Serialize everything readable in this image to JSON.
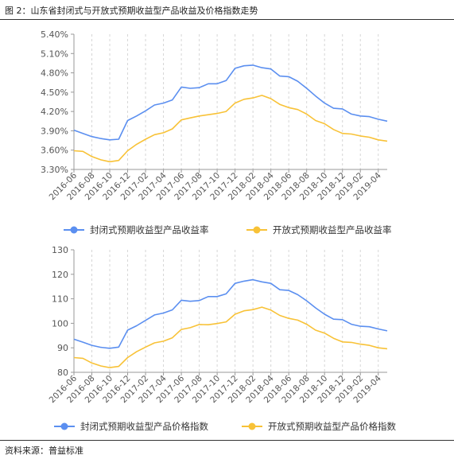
{
  "figure_title": "图 2：山东省封闭式与开放式预期收益型产品收益及价格指数走势",
  "source_note": "资料来源：普益标准",
  "colors": {
    "closed": "#5b8ff0",
    "open": "#f8c237",
    "grid": "#d6d6d6",
    "axis": "#999999",
    "text": "#555555"
  },
  "chart_data": [
    {
      "type": "line",
      "title": "",
      "x": [
        "2016-06",
        "2016-07",
        "2016-08",
        "2016-09",
        "2016-10",
        "2016-11",
        "2016-12",
        "2017-01",
        "2017-02",
        "2017-03",
        "2017-04",
        "2017-05",
        "2017-06",
        "2017-07",
        "2017-08",
        "2017-09",
        "2017-10",
        "2017-11",
        "2017-12",
        "2018-01",
        "2018-02",
        "2018-03",
        "2018-04",
        "2018-05",
        "2018-06",
        "2018-07",
        "2018-08",
        "2018-09",
        "2018-10",
        "2018-11",
        "2018-12",
        "2019-01",
        "2019-02",
        "2019-03",
        "2019-04",
        "2019-05"
      ],
      "x_tick_labels": [
        "2016-06",
        "2016-08",
        "2016-10",
        "2016-12",
        "2017-02",
        "2017-04",
        "2017-06",
        "2017-08",
        "2017-10",
        "2017-12",
        "2018-02",
        "2018-04",
        "2018-06",
        "2018-08",
        "2018-10",
        "2018-12",
        "2019-02",
        "2019-04"
      ],
      "ylim": [
        3.3,
        5.4
      ],
      "yticks": [
        "5.40%",
        "5.10%",
        "4.80%",
        "4.50%",
        "4.20%",
        "3.90%",
        "3.60%",
        "3.30%"
      ],
      "ytick_values": [
        5.4,
        5.1,
        4.8,
        4.5,
        4.2,
        3.9,
        3.6,
        3.3
      ],
      "grid": "vertical-dashed",
      "legend_position": "bottom",
      "series": [
        {
          "name": "封闭式预期收益型产品收益率",
          "color_key": "closed",
          "values": [
            3.91,
            3.86,
            3.81,
            3.78,
            3.76,
            3.77,
            4.06,
            4.13,
            4.21,
            4.3,
            4.33,
            4.38,
            4.58,
            4.56,
            4.57,
            4.63,
            4.63,
            4.68,
            4.87,
            4.91,
            4.92,
            4.88,
            4.86,
            4.75,
            4.74,
            4.67,
            4.56,
            4.44,
            4.33,
            4.25,
            4.24,
            4.16,
            4.13,
            4.12,
            4.08,
            4.05
          ]
        },
        {
          "name": "开放式预期收益型产品收益率",
          "color_key": "open",
          "values": [
            3.59,
            3.58,
            3.5,
            3.45,
            3.42,
            3.44,
            3.59,
            3.69,
            3.77,
            3.84,
            3.87,
            3.93,
            4.07,
            4.1,
            4.13,
            4.15,
            4.17,
            4.2,
            4.33,
            4.39,
            4.41,
            4.45,
            4.4,
            4.31,
            4.26,
            4.23,
            4.16,
            4.06,
            4.01,
            3.92,
            3.86,
            3.85,
            3.82,
            3.8,
            3.76,
            3.74
          ]
        }
      ]
    },
    {
      "type": "line",
      "title": "",
      "x": [
        "2016-06",
        "2016-07",
        "2016-08",
        "2016-09",
        "2016-10",
        "2016-11",
        "2016-12",
        "2017-01",
        "2017-02",
        "2017-03",
        "2017-04",
        "2017-05",
        "2017-06",
        "2017-07",
        "2017-08",
        "2017-09",
        "2017-10",
        "2017-11",
        "2017-12",
        "2018-01",
        "2018-02",
        "2018-03",
        "2018-04",
        "2018-05",
        "2018-06",
        "2018-07",
        "2018-08",
        "2018-09",
        "2018-10",
        "2018-11",
        "2018-12",
        "2019-01",
        "2019-02",
        "2019-03",
        "2019-04",
        "2019-05"
      ],
      "x_tick_labels": [
        "2016-06",
        "2016-08",
        "2016-10",
        "2016-12",
        "2017-02",
        "2017-04",
        "2017-06",
        "2017-08",
        "2017-10",
        "2017-12",
        "2018-02",
        "2018-04",
        "2018-06",
        "2018-08",
        "2018-10",
        "2018-12",
        "2019-02",
        "2019-04"
      ],
      "ylim": [
        80,
        130
      ],
      "yticks": [
        "130",
        "120",
        "110",
        "100",
        "90",
        "80"
      ],
      "ytick_values": [
        130,
        120,
        110,
        100,
        90,
        80
      ],
      "grid": "vertical-dashed",
      "legend_position": "bottom",
      "series": [
        {
          "name": "封闭式预期收益型产品价格指数",
          "color_key": "closed",
          "values": [
            93.5,
            92.3,
            91.0,
            90.2,
            89.8,
            90.3,
            97.2,
            99.0,
            101.2,
            103.4,
            104.2,
            105.5,
            109.4,
            109.0,
            109.3,
            110.9,
            110.9,
            112.0,
            116.3,
            117.2,
            117.8,
            116.9,
            116.3,
            113.7,
            113.4,
            111.7,
            109.2,
            106.3,
            103.7,
            101.7,
            101.5,
            99.6,
            98.8,
            98.6,
            97.7,
            96.9
          ]
        },
        {
          "name": "开放式预期收益型产品价格指数",
          "color_key": "open",
          "values": [
            86.0,
            85.7,
            83.8,
            82.6,
            81.9,
            82.4,
            86.0,
            88.4,
            90.3,
            92.0,
            92.7,
            94.1,
            97.5,
            98.2,
            99.5,
            99.4,
            99.9,
            100.6,
            103.7,
            105.1,
            105.6,
            106.6,
            105.4,
            103.2,
            102.0,
            101.3,
            99.6,
            97.2,
            96.0,
            93.9,
            92.4,
            92.2,
            91.5,
            91.0,
            90.0,
            89.6
          ]
        }
      ]
    }
  ]
}
